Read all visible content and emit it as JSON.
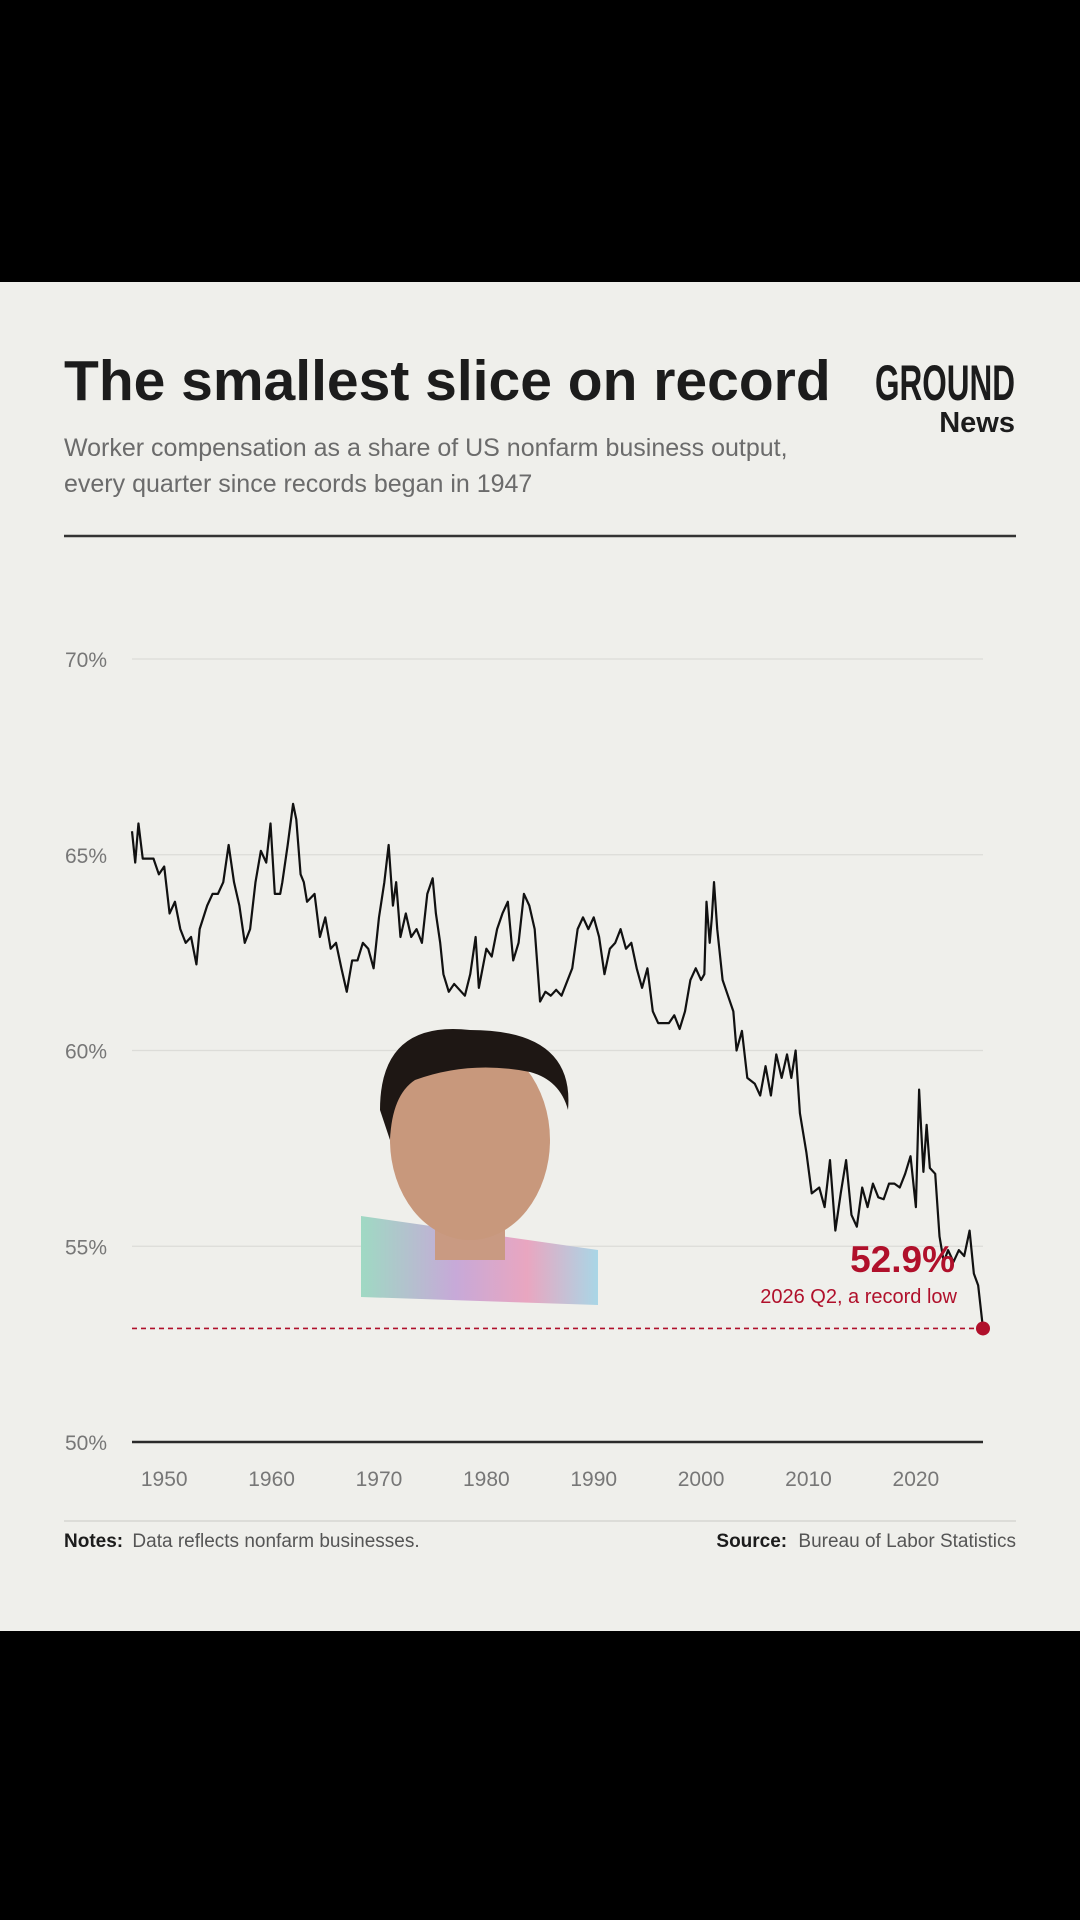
{
  "chart_data": {
    "type": "line",
    "title": "The smallest slice on record",
    "subtitle": [
      "Worker compensation as a share of US nonfarm business output,",
      "every quarter since records began in 1947"
    ],
    "logo": {
      "top": "GROUND",
      "bottom": "News"
    },
    "color": "#111111",
    "x": [
      1947.0,
      1947.3,
      1947.6,
      1948,
      1949,
      1949.5,
      1950,
      1950.5,
      1951,
      1951.5,
      1952,
      1952.5,
      1953,
      1953.3,
      1954,
      1954.5,
      1955,
      1955.5,
      1956,
      1956.5,
      1957,
      1957.5,
      1958,
      1958.5,
      1959,
      1959.5,
      1959.9,
      1960.3,
      1960.8,
      1961,
      1961.5,
      1962,
      1962.3,
      1962.7,
      1963,
      1963.3,
      1964,
      1964.5,
      1965,
      1965.5,
      1966,
      1966.5,
      1967,
      1967.5,
      1968,
      1968.5,
      1969,
      1969.5,
      1970,
      1970.5,
      1970.9,
      1971.3,
      1971.6,
      1972,
      1972.5,
      1973,
      1973.5,
      1974,
      1974.5,
      1975,
      1975.3,
      1975.7,
      1976,
      1976.5,
      1977,
      1977.5,
      1978,
      1978.5,
      1979,
      1979.3,
      1980,
      1980.5,
      1981,
      1981.5,
      1982,
      1982.5,
      1983,
      1983.5,
      1984,
      1984.5,
      1985,
      1985.5,
      1986,
      1986.5,
      1987,
      1988,
      1988.5,
      1989,
      1989.5,
      1990,
      1990.5,
      1991,
      1991.5,
      1992,
      1992.5,
      1993,
      1993.5,
      1994,
      1994.5,
      1995,
      1995.5,
      1996,
      1997,
      1997.5,
      1998,
      1998.5,
      1999,
      1999.5,
      2000,
      2000.3,
      2000.5,
      2000.8,
      2001,
      2001.2,
      2001.5,
      2002,
      2002.5,
      2003,
      2003.3,
      2003.8,
      2004.3,
      2005,
      2005.5,
      2006,
      2006.5,
      2007,
      2007.5,
      2008,
      2008.4,
      2008.8,
      2009.2,
      2009.8,
      2010.3,
      2011,
      2011.5,
      2012,
      2012.5,
      2013,
      2013.5,
      2014,
      2014.5,
      2015,
      2015.5,
      2016,
      2016.5,
      2017,
      2017.5,
      2018,
      2018.5,
      2019,
      2019.5,
      2020,
      2020.3,
      2020.7,
      2021,
      2021.3,
      2021.8,
      2022.2,
      2022.6,
      2023,
      2023.5,
      2024,
      2024.5,
      2025,
      2025.4,
      2025.8,
      2026.25
    ],
    "values": [
      65.6,
      64.8,
      65.8,
      64.9,
      64.9,
      64.5,
      64.7,
      63.5,
      63.8,
      63.1,
      62.75,
      62.9,
      62.2,
      63.1,
      63.7,
      64.0,
      64.0,
      64.3,
      65.25,
      64.3,
      63.7,
      62.75,
      63.1,
      64.3,
      65.1,
      64.8,
      65.8,
      64.0,
      64.0,
      64.3,
      65.25,
      66.3,
      65.9,
      64.5,
      64.3,
      63.8,
      64.0,
      62.9,
      63.4,
      62.6,
      62.75,
      62.1,
      61.5,
      62.3,
      62.3,
      62.75,
      62.6,
      62.1,
      63.4,
      64.3,
      65.25,
      63.7,
      64.3,
      62.9,
      63.5,
      62.9,
      63.1,
      62.75,
      64.0,
      64.4,
      63.5,
      62.75,
      61.95,
      61.5,
      61.7,
      61.55,
      61.4,
      61.95,
      62.9,
      61.6,
      62.6,
      62.4,
      63.1,
      63.5,
      63.8,
      62.3,
      62.75,
      64.0,
      63.7,
      63.1,
      61.25,
      61.5,
      61.4,
      61.55,
      61.4,
      62.1,
      63.1,
      63.4,
      63.1,
      63.4,
      62.9,
      61.95,
      62.6,
      62.75,
      63.1,
      62.6,
      62.75,
      62.1,
      61.6,
      62.1,
      61.0,
      60.7,
      60.7,
      60.9,
      60.55,
      61.0,
      61.8,
      62.1,
      61.8,
      61.95,
      63.8,
      62.75,
      63.4,
      64.3,
      63.1,
      61.8,
      61.4,
      61.0,
      60.0,
      60.5,
      59.3,
      59.15,
      58.85,
      59.6,
      58.85,
      59.9,
      59.3,
      59.9,
      59.3,
      60.0,
      58.4,
      57.4,
      56.35,
      56.5,
      56.0,
      57.2,
      55.4,
      56.35,
      57.2,
      55.8,
      55.5,
      56.5,
      56.0,
      56.6,
      56.25,
      56.2,
      56.6,
      56.6,
      56.5,
      56.85,
      57.3,
      56.0,
      59.0,
      56.9,
      58.1,
      57.0,
      56.85,
      55.25,
      54.6,
      54.9,
      54.6,
      54.9,
      54.75,
      55.4,
      54.3,
      54.0,
      52.9
    ],
    "xlim": [
      1947,
      2026.25
    ],
    "xticks": [
      1950,
      1960,
      1970,
      1980,
      1990,
      2000,
      2010,
      2020
    ],
    "ylim": [
      50,
      70
    ],
    "yticks": [
      {
        "value": 50,
        "label": "50%"
      },
      {
        "value": 55,
        "label": "55%"
      },
      {
        "value": 60,
        "label": "60%"
      },
      {
        "value": 65,
        "label": "65%"
      },
      {
        "value": 70,
        "label": "70%"
      }
    ],
    "grid": true,
    "highlight": {
      "x": 2026.25,
      "value": 52.9,
      "value_label": "52.9%",
      "note": "2026 Q2, a record low",
      "color": "#b0102b"
    },
    "notes": {
      "label": "Notes:",
      "text": "Data reflects nonfarm businesses."
    },
    "source": {
      "label": "Source:",
      "text": "Bureau of Labor Statistics"
    }
  }
}
